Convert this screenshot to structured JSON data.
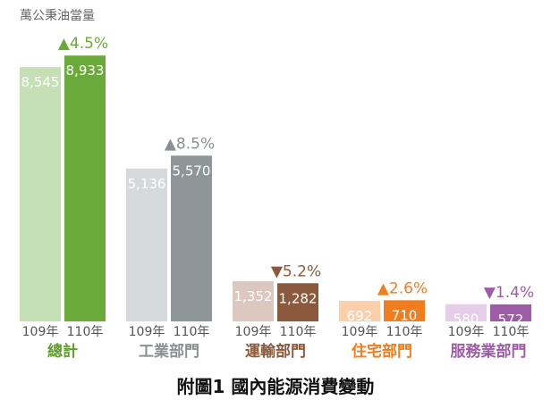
{
  "chart_data": {
    "type": "bar",
    "unit_label": "萬公秉油當量",
    "caption": "附圖1 國內能源消費變動",
    "series": [
      {
        "name": "109年",
        "values": [
          8545,
          5136,
          1352,
          692,
          580
        ]
      },
      {
        "name": "110年",
        "values": [
          8933,
          5570,
          1282,
          710,
          572
        ]
      }
    ],
    "value_labels": {
      "109年": [
        "8,545",
        "5,136",
        "1,352",
        "692",
        "580"
      ],
      "110年": [
        "8,933",
        "5,570",
        "1,282",
        "710",
        "572"
      ]
    },
    "categories": [
      "總計",
      "工業部門",
      "運輸部門",
      "住宅部門",
      "服務業部門"
    ],
    "changes": [
      {
        "arrow": "▲",
        "text": "4.5%",
        "color": "#6aaa3a"
      },
      {
        "arrow": "▲",
        "text": "8.5%",
        "color": "#8a9094"
      },
      {
        "arrow": "▼",
        "text": "5.2%",
        "color": "#8b5a3c"
      },
      {
        "arrow": "▲",
        "text": "2.6%",
        "color": "#f07d1e"
      },
      {
        "arrow": "▼",
        "text": "1.4%",
        "color": "#9e5ba6"
      }
    ],
    "colors": {
      "109年": [
        "#c5e0b4",
        "#d6d9db",
        "#dcc8bf",
        "#fbcfaa",
        "#e6cde9"
      ],
      "110年": [
        "#6aaa3a",
        "#8f9699",
        "#8b5a3c",
        "#f07d1e",
        "#9e5ba6"
      ],
      "category": [
        "#5f9e2e",
        "#8a9094",
        "#8b5a3c",
        "#f07d1e",
        "#9e5ba6"
      ]
    },
    "ylim": [
      0,
      9000
    ]
  }
}
